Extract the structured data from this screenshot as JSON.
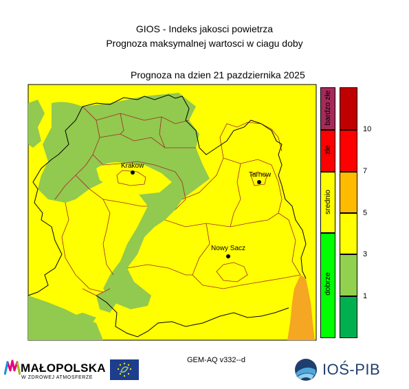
{
  "header": {
    "title": "GIOS - Indeks jakosci powietrza",
    "subtitle": "Prognoza maksymalnej wartosci w ciagu doby",
    "forecast_date": "Prognoza na dzien  21 pazdziernika 2025"
  },
  "cities": [
    {
      "name": "Krakow"
    },
    {
      "name": "Tarnow"
    },
    {
      "name": "Nowy Sacz"
    }
  ],
  "legend": {
    "categories": [
      {
        "label": "bardzo złe",
        "color": "#a52a5a"
      },
      {
        "label": "złe",
        "color": "#ff0000"
      },
      {
        "label": "srednio",
        "color": "#ffff00"
      },
      {
        "label": "dobrze",
        "color": "#00ff00"
      }
    ],
    "scale_colors": [
      "#c00000",
      "#ff0000",
      "#ffbb00",
      "#ffff00",
      "#92d050",
      "#00b050"
    ],
    "ticks": [
      "10",
      "7",
      "5",
      "3",
      "1"
    ]
  },
  "map_colors": {
    "yellow": "#ffff00",
    "green": "#92c94f",
    "orange": "#f5a623",
    "county_border": "#a0262a",
    "region_border": "#000000"
  },
  "footer": {
    "model": "GEM-AQ v332--d",
    "partner1_name": "MAŁOPOLSKA",
    "partner1_tagline": "W ZDROWEJ ATMOSFERZE",
    "partner2_name": "IOŚ-PIB"
  }
}
